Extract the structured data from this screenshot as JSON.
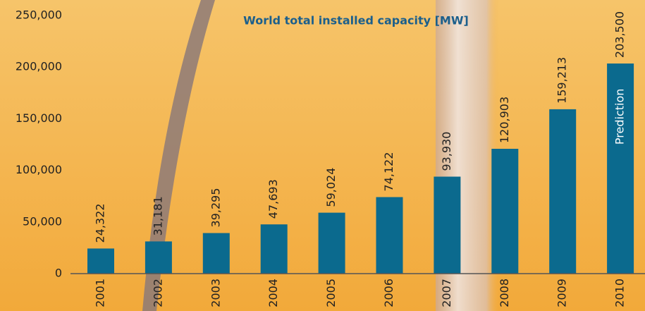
{
  "chart_data": {
    "type": "bar",
    "title": "World total installed capacity [MW]",
    "categories": [
      "2001",
      "2002",
      "2003",
      "2004",
      "2005",
      "2006",
      "2007",
      "2008",
      "2009",
      "2010"
    ],
    "values": [
      24322,
      31181,
      39295,
      47693,
      59024,
      74122,
      93930,
      120903,
      159213,
      203500
    ],
    "value_labels": [
      "24,322",
      "31,181",
      "39,295",
      "47,693",
      "59,024",
      "74,122",
      "93,930",
      "120,903",
      "159,213",
      "203,500"
    ],
    "color": "#0b6a8e",
    "annotation": "Prediction",
    "ylim": [
      0,
      250000
    ],
    "yticks": [
      0,
      {
        "value": 50000,
        "label": "50,000"
      },
      {
        "value": 100000,
        "label": "100,000"
      },
      {
        "value": 150000,
        "label": "150,000"
      },
      {
        "value": 200000,
        "label": "200,000"
      },
      {
        "value": 250000,
        "label": "250,000"
      }
    ],
    "grid": false
  }
}
